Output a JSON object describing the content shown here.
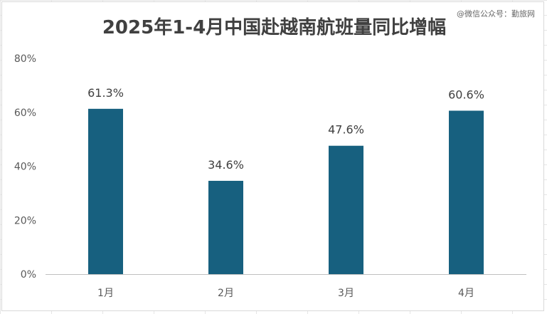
{
  "watermark": "@微信公众号：勤旅网",
  "chart_data": {
    "type": "bar",
    "title": "2025年1-4月中国赴越南航班量同比增幅",
    "xlabel": "",
    "ylabel": "",
    "categories": [
      "1月",
      "2月",
      "3月",
      "4月"
    ],
    "values": [
      61.3,
      34.6,
      47.6,
      60.6
    ],
    "data_labels": [
      "61.3%",
      "34.6%",
      "47.6%",
      "60.6%"
    ],
    "y_ticks": [
      0,
      20,
      40,
      60,
      80
    ],
    "y_tick_labels": [
      "0%",
      "20%",
      "40%",
      "60%",
      "80%"
    ],
    "ylim": [
      0,
      80
    ],
    "grid": false,
    "legend": "none",
    "bar_color": "#17607f",
    "axis_color": "#bfbfbf"
  }
}
